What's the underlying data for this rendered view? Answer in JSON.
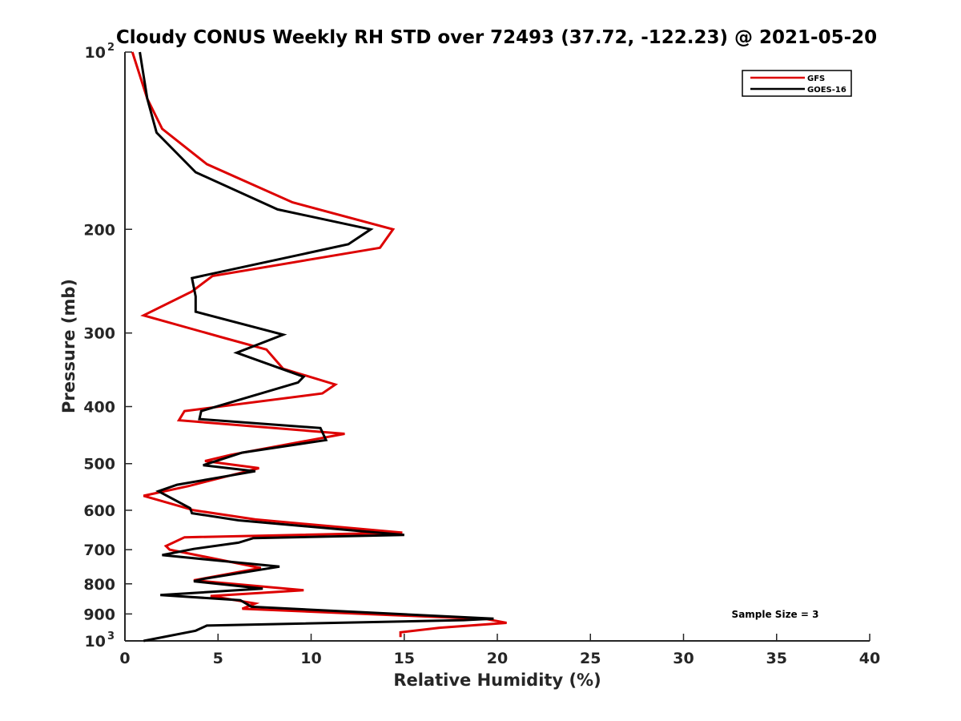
{
  "chart_data": {
    "type": "line",
    "title": "Cloudy CONUS Weekly RH STD over 72493 (37.72, -122.23) @ 2021-05-20",
    "xlabel": "Relative Humidity (%)",
    "ylabel": "Pressure (mb)",
    "xlim": [
      0,
      40
    ],
    "ylim": [
      100,
      1000
    ],
    "yscale": "log",
    "y_reversed": true,
    "grid": false,
    "legend_position": "top-right",
    "x_ticks": [
      "0",
      "5",
      "10",
      "15",
      "20",
      "25",
      "30",
      "35",
      "40"
    ],
    "y_ticks": [
      {
        "value": 100,
        "base": "10",
        "exp": "2"
      },
      {
        "value": 200,
        "label": "200"
      },
      {
        "value": 300,
        "label": "300"
      },
      {
        "value": 400,
        "label": "400"
      },
      {
        "value": 500,
        "label": "500"
      },
      {
        "value": 600,
        "label": "600"
      },
      {
        "value": 700,
        "label": "700"
      },
      {
        "value": 800,
        "label": "800"
      },
      {
        "value": 900,
        "label": "900"
      },
      {
        "value": 1000,
        "base": "10",
        "exp": "3"
      }
    ],
    "annotation": "Sample Size = 3",
    "series": [
      {
        "name": "GFS",
        "color": "#dd0000",
        "points": [
          [
            0.4,
            100
          ],
          [
            1.2,
            120
          ],
          [
            2.0,
            135
          ],
          [
            4.4,
            155
          ],
          [
            9.0,
            180
          ],
          [
            14.4,
            200
          ],
          [
            13.7,
            215
          ],
          [
            4.7,
            240
          ],
          [
            3.6,
            255
          ],
          [
            1.0,
            280
          ],
          [
            5.2,
            305
          ],
          [
            7.6,
            320
          ],
          [
            8.5,
            345
          ],
          [
            11.3,
            367
          ],
          [
            10.6,
            380
          ],
          [
            3.2,
            407
          ],
          [
            2.9,
            422
          ],
          [
            11.8,
            445
          ],
          [
            5.7,
            483
          ],
          [
            4.3,
            495
          ],
          [
            7.2,
            509
          ],
          [
            3.4,
            546
          ],
          [
            1.0,
            567
          ],
          [
            3.7,
            600
          ],
          [
            7.0,
            622
          ],
          [
            14.9,
            655
          ],
          [
            3.2,
            667
          ],
          [
            2.2,
            690
          ],
          [
            2.4,
            700
          ],
          [
            7.3,
            752
          ],
          [
            3.7,
            789
          ],
          [
            9.6,
            820
          ],
          [
            4.6,
            839
          ],
          [
            7.0,
            864
          ],
          [
            6.3,
            882
          ],
          [
            19.4,
            918
          ],
          [
            20.5,
            932
          ],
          [
            16.9,
            950
          ],
          [
            14.8,
            967
          ],
          [
            14.8,
            985
          ]
        ]
      },
      {
        "name": "GOES-16",
        "color": "#000000",
        "points": [
          [
            0.8,
            100
          ],
          [
            1.2,
            120
          ],
          [
            1.7,
            137
          ],
          [
            3.8,
            160
          ],
          [
            8.2,
            185
          ],
          [
            13.2,
            200
          ],
          [
            12.0,
            212
          ],
          [
            3.6,
            242
          ],
          [
            3.8,
            260
          ],
          [
            3.8,
            276
          ],
          [
            8.5,
            302
          ],
          [
            6.0,
            324
          ],
          [
            9.6,
            356
          ],
          [
            9.3,
            364
          ],
          [
            4.1,
            407
          ],
          [
            4.0,
            420
          ],
          [
            10.5,
            435
          ],
          [
            10.8,
            456
          ],
          [
            6.3,
            479
          ],
          [
            4.2,
            503
          ],
          [
            7.0,
            515
          ],
          [
            2.8,
            543
          ],
          [
            1.8,
            557
          ],
          [
            3.5,
            595
          ],
          [
            3.6,
            607
          ],
          [
            6.1,
            624
          ],
          [
            15.0,
            661
          ],
          [
            6.9,
            669
          ],
          [
            6.1,
            681
          ],
          [
            3.7,
            698
          ],
          [
            2.0,
            715
          ],
          [
            8.3,
            748
          ],
          [
            4.2,
            785
          ],
          [
            3.7,
            792
          ],
          [
            7.4,
            815
          ],
          [
            1.9,
            836
          ],
          [
            6.2,
            853
          ],
          [
            6.8,
            875
          ],
          [
            19.8,
            917
          ],
          [
            18.2,
            922
          ],
          [
            4.4,
            942
          ],
          [
            3.8,
            961
          ],
          [
            1.0,
            1000
          ]
        ]
      }
    ]
  }
}
